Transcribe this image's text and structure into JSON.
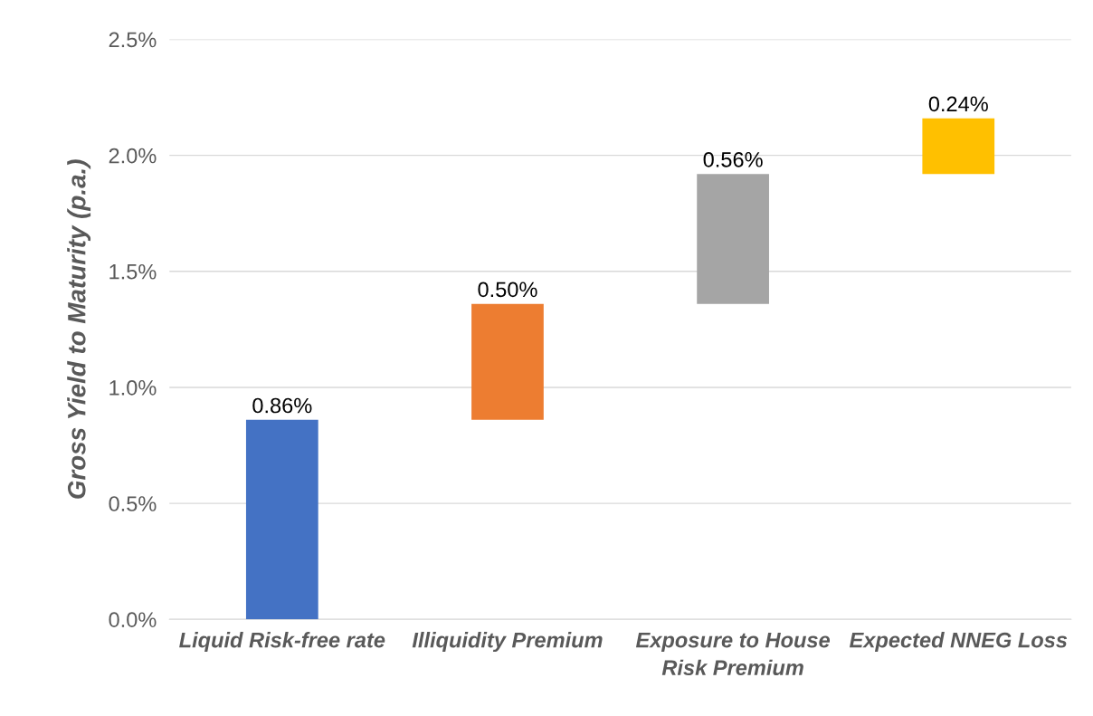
{
  "chart_data": {
    "type": "bar",
    "ylabel": "Gross Yield to Maturity (p.a.)",
    "categories": [
      "Liquid Risk-free rate",
      "Illiquidity Premium",
      "Exposure to House Risk Premium",
      "Expected NNEG Loss"
    ],
    "values": [
      0.86,
      0.5,
      0.56,
      0.24
    ],
    "base": [
      0,
      0.86,
      1.36,
      1.92
    ],
    "colors": [
      "#4472c4",
      "#ed7d31",
      "#a5a5a5",
      "#ffc000"
    ],
    "value_labels": [
      "0.86%",
      "0.50%",
      "0.56%",
      "0.24%"
    ],
    "ylim": [
      0,
      2.5
    ],
    "yticks": [
      {
        "value": 0,
        "label": "0.0%"
      },
      {
        "value": 0.5,
        "label": "0.5%"
      },
      {
        "value": 1.0,
        "label": "1.0%"
      },
      {
        "value": 1.5,
        "label": "1.5%"
      },
      {
        "value": 2.0,
        "label": "2.0%"
      },
      {
        "value": 2.5,
        "label": "2.5%"
      }
    ],
    "grid": "y",
    "legend": false
  }
}
